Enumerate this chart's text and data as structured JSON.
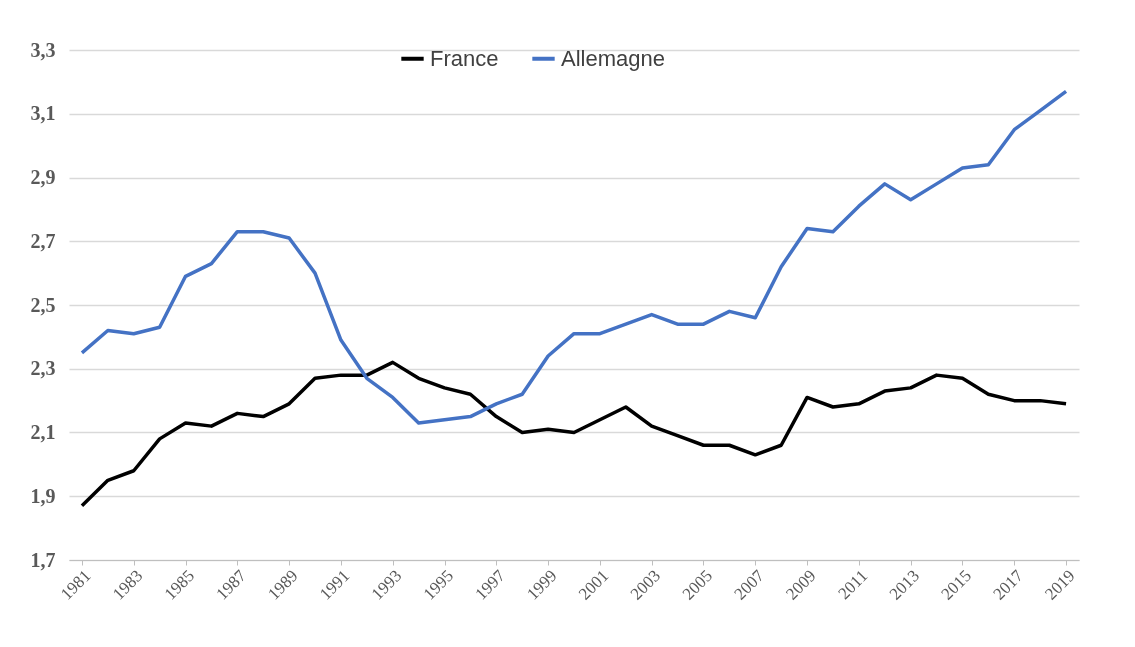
{
  "chart_data": {
    "type": "line",
    "x": [
      1981,
      1982,
      1983,
      1984,
      1985,
      1986,
      1987,
      1988,
      1989,
      1990,
      1991,
      1992,
      1993,
      1994,
      1995,
      1996,
      1997,
      1998,
      1999,
      2000,
      2001,
      2002,
      2003,
      2004,
      2005,
      2006,
      2007,
      2008,
      2009,
      2010,
      2011,
      2012,
      2013,
      2014,
      2015,
      2016,
      2017,
      2018,
      2019
    ],
    "series": [
      {
        "name": "France",
        "color": "#000000",
        "values": [
          1.87,
          1.95,
          1.98,
          2.08,
          2.13,
          2.12,
          2.16,
          2.15,
          2.19,
          2.27,
          2.28,
          2.28,
          2.32,
          2.27,
          2.24,
          2.22,
          2.15,
          2.1,
          2.11,
          2.1,
          2.14,
          2.18,
          2.12,
          2.09,
          2.06,
          2.06,
          2.03,
          2.06,
          2.21,
          2.18,
          2.19,
          2.23,
          2.24,
          2.28,
          2.27,
          2.22,
          2.2,
          2.2,
          2.19
        ]
      },
      {
        "name": "Allemagne",
        "color": "#4472c4",
        "values": [
          2.35,
          2.42,
          2.41,
          2.43,
          2.59,
          2.63,
          2.73,
          2.73,
          2.71,
          2.6,
          2.39,
          2.27,
          2.21,
          2.13,
          2.14,
          2.15,
          2.19,
          2.22,
          2.34,
          2.41,
          2.41,
          2.44,
          2.47,
          2.44,
          2.44,
          2.48,
          2.46,
          2.62,
          2.74,
          2.73,
          2.81,
          2.88,
          2.83,
          2.88,
          2.93,
          2.94,
          3.05,
          3.11,
          3.17
        ]
      }
    ],
    "xlim": [
      1980.5,
      2019.5
    ],
    "xticks": [
      1981,
      1983,
      1985,
      1987,
      1989,
      1991,
      1993,
      1995,
      1997,
      1999,
      2001,
      2003,
      2005,
      2007,
      2009,
      2011,
      2013,
      2015,
      2017,
      2019
    ],
    "ylim": [
      1.7,
      3.3
    ],
    "yticks": [
      {
        "value": 1.7,
        "label": "1,7"
      },
      {
        "value": 1.9,
        "label": "1,9"
      },
      {
        "value": 2.1,
        "label": "2,1"
      },
      {
        "value": 2.3,
        "label": "2,3"
      },
      {
        "value": 2.5,
        "label": "2,5"
      },
      {
        "value": 2.7,
        "label": "2,7"
      },
      {
        "value": 2.9,
        "label": "2,9"
      },
      {
        "value": 3.1,
        "label": "3,1"
      },
      {
        "value": 3.3,
        "label": "3,3"
      }
    ],
    "grid": "y",
    "legend": "top",
    "line_style": "solid"
  }
}
